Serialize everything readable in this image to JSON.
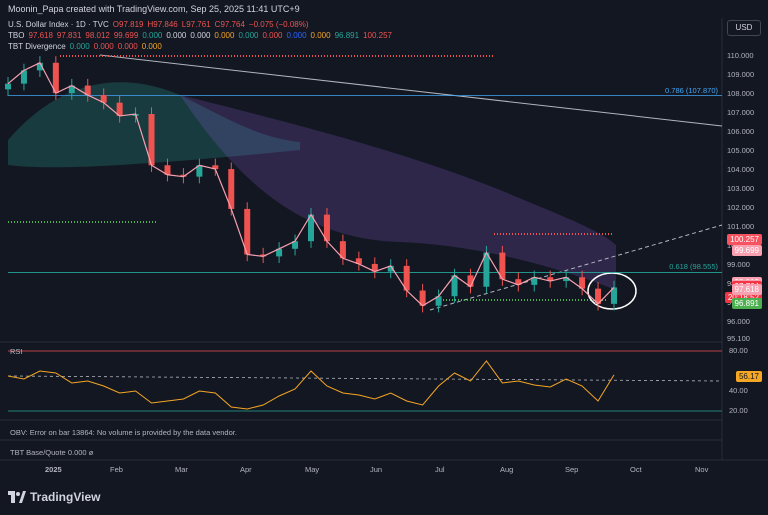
{
  "header": {
    "credit": "Moonin_Papa created with TradingView.com, Sep 25, 2025 11:41 UTC+9"
  },
  "legend": {
    "symbol": "U.S. Dollar Index · 1D · TVC",
    "ohlc": {
      "O": "97.819",
      "H": "97.846",
      "L": "97.761",
      "C": "97.764",
      "chg": "−0.075 (−0.08%)"
    },
    "tbo_label": "TBO",
    "tbo_values": [
      "97.618",
      "97.831",
      "98.012",
      "99.699",
      "0.000",
      "0.000",
      "0.000",
      "0.000",
      "0.000",
      "0.000",
      "0.000",
      "0.000",
      "96.891",
      "100.257"
    ],
    "tbt_label": "TBT Divergence",
    "tbt_values": [
      "0.000",
      "0.000",
      "0.000",
      "0.000"
    ]
  },
  "currency_button": "USD",
  "price_axis": {
    "ticks": [
      "110.000",
      "109.000",
      "108.000",
      "107.000",
      "106.000",
      "105.000",
      "104.000",
      "103.000",
      "102.000",
      "101.000",
      "100.000",
      "99.000",
      "98.000",
      "97.000",
      "96.000",
      "95.100"
    ]
  },
  "price_tags": [
    {
      "text": "100.257",
      "color": "#f7525f"
    },
    {
      "text": "99.699",
      "color": "#f8a0b0"
    },
    {
      "text": "98.012",
      "color": "#f8a0b0"
    },
    {
      "text": "97.831",
      "color": "#f8a0b0"
    },
    {
      "text": "97.764",
      "color": "#f23645"
    },
    {
      "text": "20:18:52",
      "color": "#f23645"
    },
    {
      "text": "97.618",
      "color": "#f8a0b0"
    },
    {
      "text": "96.891",
      "color": "#4caf50"
    }
  ],
  "fib_labels": [
    {
      "text": "0.786 (107.870)",
      "color": "#42a5f5"
    },
    {
      "text": "0.618 (98.555)",
      "color": "#26a69a"
    }
  ],
  "rsi": {
    "label": "RSI",
    "value_label": "56.17",
    "axis_ticks": [
      "80.00",
      "56.17",
      "40.00",
      "20.00"
    ]
  },
  "obv_panel": {
    "text": "OBV: Error on bar 13864: No volume is provided by the data vendor."
  },
  "tbt_panel": {
    "label": "TBT Base/Quote",
    "value": "0.000",
    "extra": "ø"
  },
  "time_axis": [
    "2025",
    "Feb",
    "Mar",
    "Apr",
    "May",
    "Jun",
    "Jul",
    "Aug",
    "Sep",
    "Oct",
    "Nov"
  ],
  "brand": "TradingView",
  "colors": {
    "up": "#26a69a",
    "down": "#ef5350",
    "background": "#131722",
    "rsi_line": "#f5a623",
    "fib_786": "#42a5f5",
    "fib_618": "#26a69a"
  },
  "chart_data": {
    "type": "line",
    "title": "U.S. Dollar Index · 1D · TVC",
    "x": [
      "2025-01-01",
      "2025-01-08",
      "2025-01-15",
      "2025-01-22",
      "2025-01-29",
      "2025-02-05",
      "2025-02-12",
      "2025-02-19",
      "2025-02-26",
      "2025-03-05",
      "2025-03-12",
      "2025-03-19",
      "2025-03-26",
      "2025-04-02",
      "2025-04-09",
      "2025-04-16",
      "2025-04-23",
      "2025-04-30",
      "2025-05-07",
      "2025-05-14",
      "2025-05-21",
      "2025-05-28",
      "2025-06-04",
      "2025-06-11",
      "2025-06-18",
      "2025-06-25",
      "2025-07-02",
      "2025-07-09",
      "2025-07-16",
      "2025-07-23",
      "2025-07-30",
      "2025-08-06",
      "2025-08-13",
      "2025-08-20",
      "2025-08-27",
      "2025-09-03",
      "2025-09-10",
      "2025-09-17",
      "2025-09-24"
    ],
    "series": [
      {
        "values": [
          108.5,
          109.2,
          109.6,
          108.0,
          108.4,
          107.9,
          107.5,
          106.8,
          106.9,
          104.2,
          103.7,
          103.6,
          104.2,
          104.0,
          101.9,
          99.5,
          99.4,
          99.8,
          100.2,
          101.6,
          100.2,
          99.3,
          99.0,
          98.6,
          98.9,
          97.6,
          96.8,
          97.3,
          98.4,
          97.8,
          99.6,
          98.2,
          97.9,
          98.3,
          98.1,
          98.3,
          97.7,
          96.9,
          97.764
        ]
      }
    ],
    "ylim": [
      95.1,
      110.8
    ],
    "rsi_values": [
      55,
      52,
      60,
      58,
      48,
      50,
      45,
      38,
      40,
      28,
      30,
      32,
      40,
      38,
      24,
      22,
      26,
      35,
      42,
      60,
      45,
      38,
      36,
      32,
      38,
      30,
      26,
      45,
      58,
      50,
      70,
      48,
      50,
      46,
      44,
      52,
      45,
      30,
      56.17
    ],
    "rsi_ylim": [
      15,
      85
    ],
    "fib_levels": [
      {
        "label": "0.786",
        "value": 107.87
      },
      {
        "label": "0.618",
        "value": 98.555
      }
    ]
  }
}
